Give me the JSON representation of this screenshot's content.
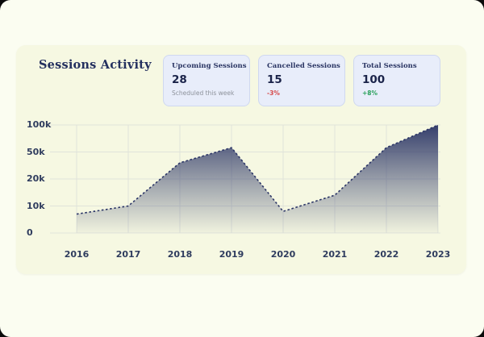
{
  "card": {
    "title": "Sessions Activity"
  },
  "stat_cards": [
    {
      "title": "Upcoming Sessions",
      "value": "28",
      "sub": "Scheduled this week",
      "tone": "muted"
    },
    {
      "title": "Cancelled Sessions",
      "value": "15",
      "sub": "-3%",
      "tone": "negative"
    },
    {
      "title": "Total Sessions",
      "value": "100",
      "sub": "+8%",
      "tone": "positive"
    }
  ],
  "chart_data": {
    "type": "area",
    "title": "Sessions Activity",
    "x": [
      "2016",
      "2017",
      "2018",
      "2019",
      "2020",
      "2021",
      "2022",
      "2023"
    ],
    "values": [
      7000,
      10000,
      38000,
      58000,
      8000,
      14000,
      58000,
      100000
    ],
    "ytick_values": [
      0,
      10000,
      20000,
      50000,
      100000
    ],
    "ytick_labels": [
      "0",
      "10k",
      "20k",
      "50k",
      "100k"
    ],
    "yscale": "non-linear, ticks evenly spaced",
    "ylim": [
      0,
      100000
    ],
    "grid": true,
    "line_style": "dashed",
    "legend": "none"
  },
  "colors": {
    "page_bg": "#fbfdf1",
    "card_bg": "#f6f8e2",
    "stat_card_bg": "#e8edfa",
    "stat_card_border": "#cfd8f0",
    "accent_navy": "#2b3566",
    "title_navy": "#24305f",
    "tick_text": "#2f3c5e",
    "negative": "#d64949",
    "positive": "#2aa15c",
    "muted": "#8d929b",
    "grid_line": "#e0e3da"
  }
}
